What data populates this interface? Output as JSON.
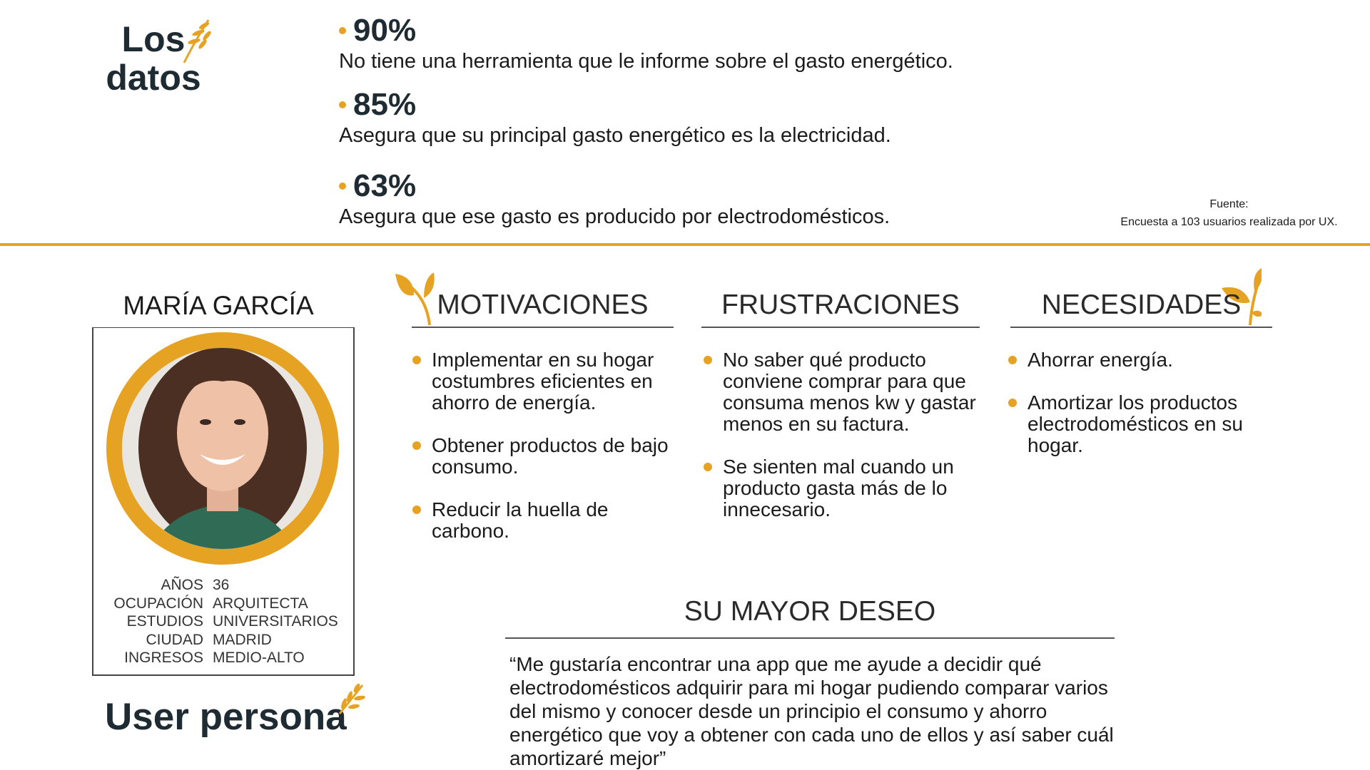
{
  "stats": {
    "title": "Los datos",
    "items": [
      {
        "value": "90%",
        "text": "No tiene una herramienta que le informe sobre el gasto energético."
      },
      {
        "value": "85%",
        "text": "Asegura que su principal gasto energético es la electricidad."
      },
      {
        "value": "63%",
        "text": "Asegura que ese gasto es producido por electrodomésticos."
      }
    ],
    "source_label": "Fuente:",
    "source": "Encuesta a 103 usuarios realizada por UX."
  },
  "persona": {
    "name": "MARÍA GARCÍA",
    "attributes": [
      {
        "label": "AÑOS",
        "value": "36"
      },
      {
        "label": "OCUPACIÓN",
        "value": "ARQUITECTA"
      },
      {
        "label": "ESTUDIOS",
        "value": "UNIVERSITARIOS"
      },
      {
        "label": "CIUDAD",
        "value": "MADRID"
      },
      {
        "label": "INGRESOS",
        "value": "MEDIO-ALTO"
      }
    ],
    "title": "User persona"
  },
  "columns": [
    {
      "heading": "MOTIVACIONES",
      "items": [
        "Implementar en su hogar costumbres eficientes en ahorro de energía.",
        "Obtener productos de bajo consumo.",
        "Reducir la huella de carbono."
      ]
    },
    {
      "heading": "FRUSTRACIONES",
      "items": [
        "No saber qué producto conviene comprar para que consuma menos kw y gastar menos en su factura.",
        "Se sienten mal cuando un producto gasta más de lo innecesario."
      ]
    },
    {
      "heading": "NECESIDADES",
      "items": [
        "Ahorrar energía.",
        "Amortizar los productos electrodomésticos en su hogar."
      ]
    }
  ],
  "wish": {
    "heading": "SU MAYOR DESEO",
    "quote": "“Me gustaría encontrar una app que me ayude a decidir qué electrodomésticos adquirir para mi hogar pudiendo comparar varios del mismo y conocer desde un principio el consumo y ahorro energético que voy a obtener con cada uno de ellos y así saber cuál amortizaré mejor”"
  }
}
